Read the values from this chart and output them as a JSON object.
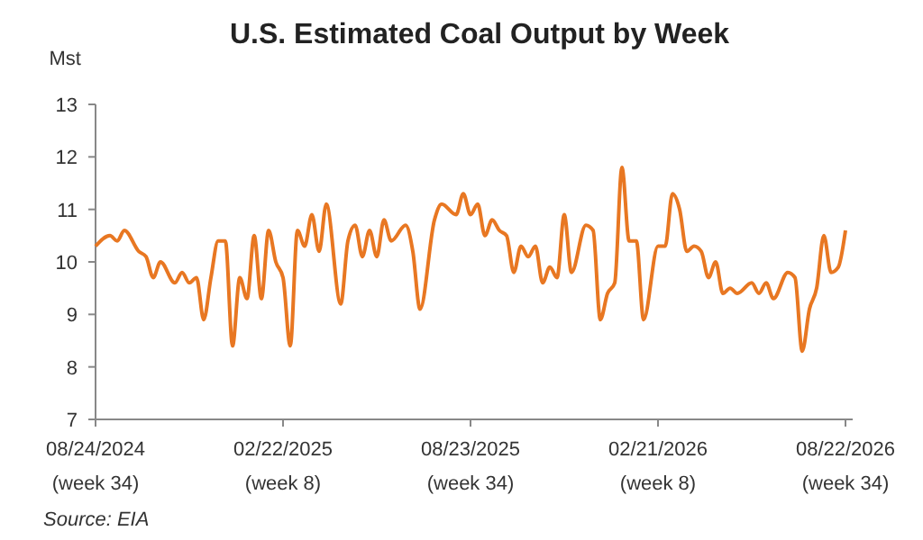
{
  "chart_data": {
    "type": "line",
    "title": "U.S. Estimated Coal Output by Week",
    "ylabel": "Mst",
    "annotations": [
      "Source: EIA"
    ],
    "xlim": [
      "2024-08-24",
      "2026-08-29"
    ],
    "xticks": [
      {
        "value": "2024-08-24",
        "label": "08/24/2024\n(week 34)"
      },
      {
        "value": "2025-02-22",
        "label": "02/22/2025\n(week 8)"
      },
      {
        "value": "2025-08-23",
        "label": "08/23/2025\n(week 34)"
      },
      {
        "value": "2026-02-21",
        "label": "02/21/2026\n(week 8)"
      },
      {
        "value": "2026-08-22",
        "label": "08/22/2026\n(week 34)"
      }
    ],
    "ylim": [
      7,
      13
    ],
    "yticks": [
      7,
      8,
      9,
      10,
      11,
      12,
      13
    ],
    "grid": false,
    "marker": "none",
    "line_style": "solid",
    "series": [
      {
        "color": "#e87722",
        "x": [
          "2024-08-24",
          "2024-09-07",
          "2024-09-14",
          "2024-09-21",
          "2024-10-05",
          "2024-10-12",
          "2024-10-19",
          "2024-10-26",
          "2024-11-09",
          "2024-11-16",
          "2024-11-23",
          "2024-11-30",
          "2024-12-07",
          "2024-12-14",
          "2024-12-21",
          "2024-12-28",
          "2025-01-04",
          "2025-01-11",
          "2025-01-18",
          "2025-01-25",
          "2025-02-01",
          "2025-02-08",
          "2025-02-15",
          "2025-02-22",
          "2025-03-01",
          "2025-03-08",
          "2025-03-15",
          "2025-03-22",
          "2025-03-29",
          "2025-04-05",
          "2025-04-19",
          "2025-04-26",
          "2025-05-03",
          "2025-05-10",
          "2025-05-17",
          "2025-05-24",
          "2025-05-31",
          "2025-06-07",
          "2025-06-21",
          "2025-06-28",
          "2025-07-05",
          "2025-07-19",
          "2025-07-26",
          "2025-08-09",
          "2025-08-16",
          "2025-08-23",
          "2025-08-30",
          "2025-09-06",
          "2025-09-13",
          "2025-09-20",
          "2025-09-27",
          "2025-10-04",
          "2025-10-11",
          "2025-10-18",
          "2025-10-25",
          "2025-11-01",
          "2025-11-08",
          "2025-11-15",
          "2025-11-22",
          "2025-11-29",
          "2025-12-13",
          "2025-12-20",
          "2025-12-27",
          "2026-01-03",
          "2026-01-10",
          "2026-01-17",
          "2026-01-24",
          "2026-01-31",
          "2026-02-07",
          "2026-02-21",
          "2026-02-28",
          "2026-03-07",
          "2026-03-14",
          "2026-03-21",
          "2026-03-28",
          "2026-04-04",
          "2026-04-11",
          "2026-04-18",
          "2026-04-25",
          "2026-05-02",
          "2026-05-09",
          "2026-05-23",
          "2026-05-30",
          "2026-06-06",
          "2026-06-13",
          "2026-06-27",
          "2026-07-04",
          "2026-07-11",
          "2026-07-18",
          "2026-07-25",
          "2026-08-01",
          "2026-08-08",
          "2026-08-15",
          "2026-08-22"
        ],
        "values": [
          10.3,
          10.5,
          10.4,
          10.6,
          10.2,
          10.1,
          9.7,
          10.0,
          9.6,
          9.8,
          9.6,
          9.7,
          8.9,
          9.7,
          10.4,
          10.4,
          8.4,
          9.7,
          9.3,
          10.5,
          9.3,
          10.6,
          10.0,
          9.7,
          8.4,
          10.6,
          10.3,
          10.9,
          10.2,
          11.1,
          9.2,
          10.4,
          10.7,
          10.1,
          10.6,
          10.1,
          10.8,
          10.4,
          10.7,
          10.2,
          9.1,
          10.8,
          11.1,
          10.9,
          11.3,
          10.9,
          11.1,
          10.5,
          10.8,
          10.6,
          10.5,
          9.8,
          10.3,
          10.1,
          10.3,
          9.6,
          9.9,
          9.7,
          10.9,
          9.8,
          10.7,
          10.6,
          8.9,
          9.4,
          9.6,
          11.8,
          10.4,
          10.4,
          8.9,
          10.3,
          10.3,
          11.3,
          11.0,
          10.2,
          10.3,
          10.2,
          9.7,
          10.0,
          9.4,
          9.5,
          9.4,
          9.6,
          9.4,
          9.6,
          9.3,
          9.8,
          9.7,
          8.3,
          9.1,
          9.5,
          10.5,
          9.8,
          9.9,
          10.6
        ]
      }
    ]
  }
}
